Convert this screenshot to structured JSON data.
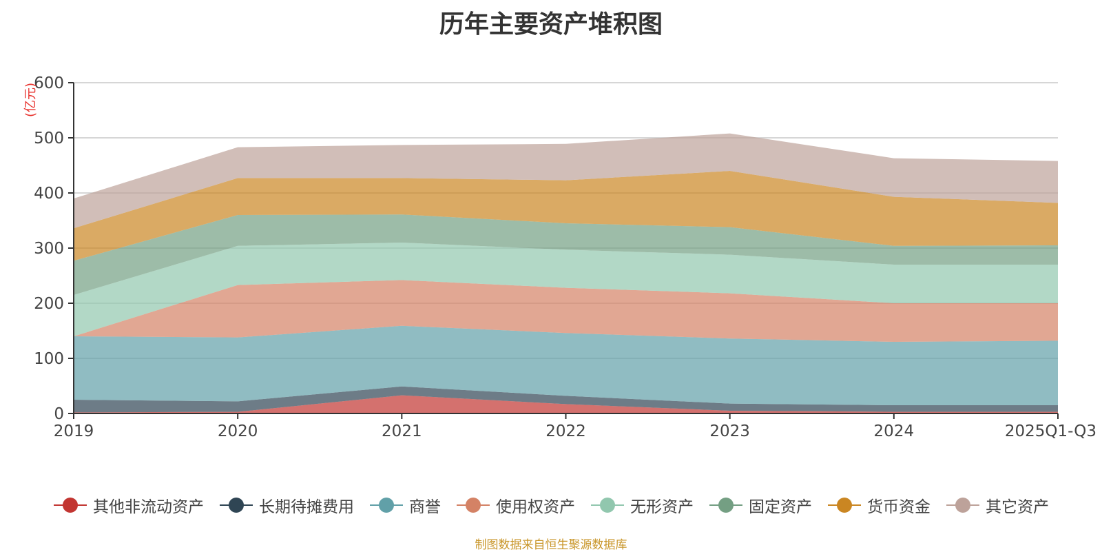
{
  "chart_data": {
    "type": "area",
    "stacked": true,
    "title": "历年主要资产堆积图",
    "ylabel": "(亿元)",
    "xlabel": "",
    "ylim": [
      0,
      600
    ],
    "yticks": [
      0,
      100,
      200,
      300,
      400,
      500,
      600
    ],
    "grid": true,
    "legend_position": "bottom",
    "categories": [
      "2019",
      "2020",
      "2021",
      "2022",
      "2023",
      "2024",
      "2025Q1-Q3"
    ],
    "series": [
      {
        "name": "其他非流动资产",
        "color": "#c23531",
        "values": [
          2,
          3,
          33,
          17,
          5,
          3,
          3
        ]
      },
      {
        "name": "长期待摊费用",
        "color": "#2f4554",
        "values": [
          23,
          19,
          16,
          15,
          13,
          12,
          12
        ]
      },
      {
        "name": "商誉",
        "color": "#61a0a8",
        "values": [
          115,
          116,
          110,
          114,
          118,
          115,
          117
        ]
      },
      {
        "name": "使用权资产",
        "color": "#d48265",
        "values": [
          0,
          95,
          83,
          82,
          82,
          70,
          68
        ]
      },
      {
        "name": "无形资产",
        "color": "#91c7ae",
        "values": [
          75,
          71,
          68,
          69,
          70,
          70,
          70
        ]
      },
      {
        "name": "固定资产",
        "color": "#749f83",
        "values": [
          62,
          56,
          51,
          48,
          50,
          34,
          35
        ]
      },
      {
        "name": "货币资金",
        "color": "#ca8622",
        "values": [
          59,
          67,
          66,
          78,
          102,
          89,
          77
        ]
      },
      {
        "name": "其它资产",
        "color": "#bda29a",
        "values": [
          54,
          56,
          60,
          66,
          68,
          70,
          76
        ]
      }
    ]
  },
  "source_note": "制图数据来自恒生聚源数据库"
}
